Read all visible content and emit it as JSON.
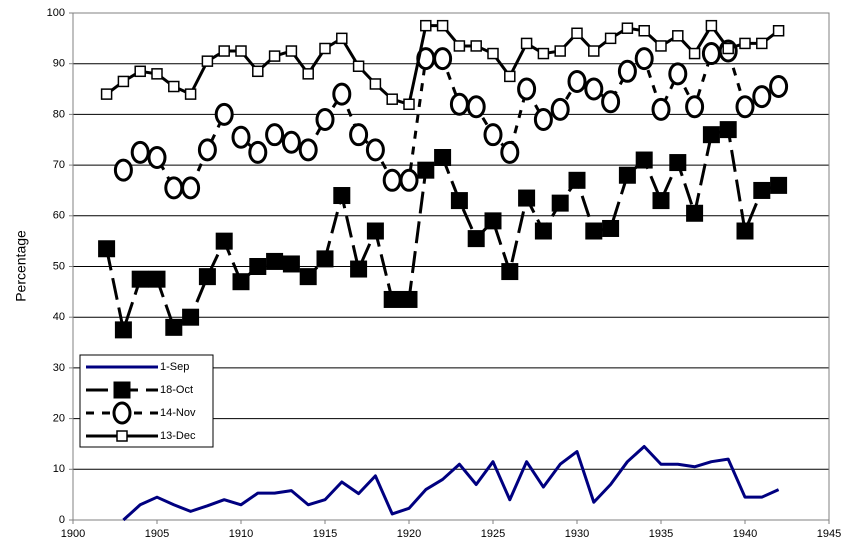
{
  "chart_data": {
    "type": "line",
    "y_label": "Percentage",
    "x": [
      1902,
      1903,
      1904,
      1905,
      1906,
      1907,
      1908,
      1909,
      1910,
      1911,
      1912,
      1913,
      1914,
      1915,
      1916,
      1917,
      1918,
      1919,
      1920,
      1921,
      1922,
      1923,
      1924,
      1925,
      1926,
      1927,
      1928,
      1929,
      1930,
      1931,
      1932,
      1933,
      1934,
      1935,
      1936,
      1937,
      1938,
      1939,
      1940,
      1941,
      1942
    ],
    "series": [
      {
        "name": "1-Sep",
        "color": "#000080",
        "marker": "none",
        "dash": "solid",
        "values": [
          null,
          0,
          3,
          4.5,
          3,
          1.7,
          2.8,
          4,
          3,
          5.3,
          5.3,
          5.8,
          3,
          4,
          7.5,
          5.2,
          8.7,
          1.2,
          2.3,
          6,
          8,
          11,
          7,
          11.5,
          4,
          11.5,
          6.5,
          11,
          13.5,
          3.5,
          7,
          11.5,
          14.5,
          11,
          11,
          10.5,
          11.5,
          12,
          4.5,
          4.5,
          6
        ]
      },
      {
        "name": "18-Oct",
        "color": "#000000",
        "marker": "filled-square",
        "dash": "long-dash",
        "values": [
          53.5,
          37.5,
          47.5,
          47.5,
          38,
          40,
          48,
          55,
          47,
          50,
          51,
          50.5,
          48,
          51.5,
          64,
          49.5,
          57,
          43.5,
          43.5,
          69,
          71.5,
          63,
          55.5,
          59,
          49,
          63.5,
          57,
          62.5,
          67,
          57,
          57.5,
          68,
          71,
          63,
          70.5,
          60.5,
          76,
          77,
          57,
          65,
          66
        ]
      },
      {
        "name": "14-Nov",
        "color": "#000000",
        "marker": "open-circle",
        "dash": "short-dash",
        "values": [
          null,
          69,
          72.5,
          71.5,
          65.5,
          65.5,
          73,
          80,
          75.5,
          72.5,
          76,
          74.5,
          73,
          79,
          84,
          76,
          73,
          67,
          67,
          91,
          91,
          82,
          81.5,
          76,
          72.5,
          85,
          79,
          81,
          86.5,
          85,
          82.5,
          88.5,
          91,
          81,
          88,
          81.5,
          92,
          92.5,
          81.5,
          83.5,
          85.5
        ]
      },
      {
        "name": "13-Dec",
        "color": "#000000",
        "marker": "open-square",
        "dash": "solid",
        "values": [
          84,
          86.5,
          88.5,
          88,
          85.5,
          84,
          90.5,
          92.5,
          92.5,
          88.5,
          91.5,
          92.5,
          88,
          93,
          95,
          89.5,
          86,
          83,
          82,
          97.5,
          97.5,
          93.5,
          93.5,
          92,
          87.5,
          94,
          92,
          92.5,
          96,
          92.5,
          95,
          97,
          96.5,
          93.5,
          95.5,
          92,
          97.5,
          93,
          94,
          94,
          96.5
        ]
      }
    ],
    "xlim": [
      1900,
      1945
    ],
    "xticks": [
      1900,
      1905,
      1910,
      1915,
      1920,
      1925,
      1930,
      1935,
      1940,
      1945
    ],
    "ylim": [
      0,
      100
    ],
    "yticks": [
      0,
      10,
      20,
      30,
      40,
      50,
      60,
      70,
      80,
      90,
      100
    ],
    "grid": true,
    "legend": "lower-left"
  }
}
